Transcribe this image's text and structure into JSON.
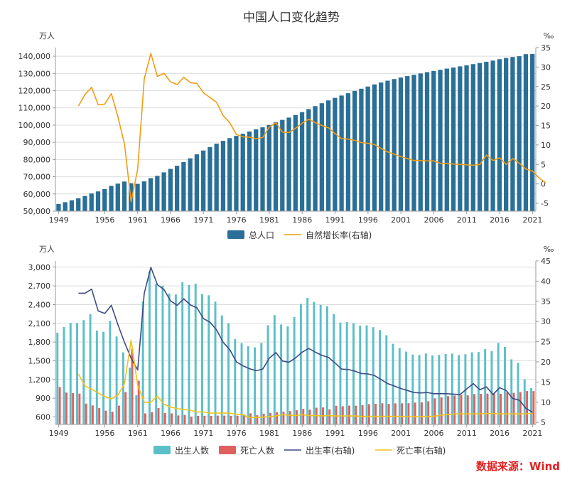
{
  "title": "中国人口变化趋势",
  "source": "数据来源：Wind",
  "colors": {
    "population_bar": "#2a6f97",
    "growth_line": "#f39c12",
    "birth_bar": "#5bbfc8",
    "death_bar": "#e06060",
    "birth_rate_line": "#3d4a85",
    "death_rate_line": "#f0c419",
    "grid": "#dddddd",
    "axis": "#999999"
  },
  "chart_data": [
    {
      "type": "bar",
      "name": "top-chart",
      "left_unit": "万人",
      "right_unit": "‰",
      "x_ticks": [
        "1949",
        "1956",
        "1961",
        "1966",
        "1971",
        "1976",
        "1981",
        "1986",
        "1991",
        "1996",
        "2001",
        "2006",
        "2011",
        "2016",
        "2021"
      ],
      "y_left_ticks": [
        "50,000",
        "60,000",
        "70,000",
        "80,000",
        "90,000",
        "100,000",
        "110,000",
        "120,000",
        "130,000",
        "140,000"
      ],
      "y_right_ticks": [
        "-5",
        "0",
        "5",
        "10",
        "15",
        "20",
        "25",
        "30",
        "35"
      ],
      "ylim_left": [
        50000,
        145000
      ],
      "ylim_right": [
        -7,
        35
      ],
      "x_start": 1949,
      "x_end": 2021,
      "series": [
        {
          "name": "总人口",
          "kind": "bar",
          "axis": "left",
          "start_year": 1949,
          "values": [
            54167,
            55196,
            56300,
            57482,
            58796,
            60266,
            61465,
            62828,
            64653,
            65994,
            67207,
            66207,
            65859,
            67296,
            69172,
            70499,
            72538,
            74542,
            76368,
            78534,
            80671,
            82992,
            85229,
            87177,
            89211,
            90859,
            92420,
            93717,
            94974,
            96259,
            97542,
            98705,
            100072,
            101654,
            103008,
            104357,
            105851,
            107507,
            109300,
            111026,
            112704,
            114333,
            115823,
            117171,
            118517,
            119850,
            121121,
            122389,
            123626,
            124761,
            125786,
            126743,
            127627,
            128453,
            129227,
            129988,
            130756,
            131448,
            132129,
            132802,
            133450,
            134091,
            134735,
            135404,
            136072,
            136782,
            137462,
            138271,
            139008,
            139538,
            140005,
            141212,
            141260
          ]
        },
        {
          "name": "自然增长率(右轴)",
          "kind": "line",
          "axis": "right",
          "start_year": 1952,
          "values": [
            20.0,
            23.0,
            24.8,
            20.3,
            20.5,
            23.2,
            17.2,
            10.2,
            -4.6,
            3.8,
            27.0,
            33.5,
            27.6,
            28.4,
            26.2,
            25.5,
            27.4,
            26.0,
            25.8,
            23.4,
            22.2,
            20.9,
            17.5,
            15.7,
            12.7,
            12.1,
            12.0,
            11.6,
            11.9,
            14.6,
            15.7,
            13.3,
            13.2,
            14.3,
            15.6,
            16.6,
            15.7,
            15.0,
            14.4,
            12.9,
            11.6,
            11.5,
            11.2,
            10.6,
            10.4,
            10.1,
            9.1,
            8.2,
            7.6,
            7.0,
            6.5,
            6.0,
            6.0,
            5.9,
            5.9,
            5.3,
            5.2,
            5.1,
            5.0,
            4.9,
            4.8,
            5.0,
            7.4,
            6.0,
            6.7,
            5.0,
            6.5,
            5.3,
            3.8,
            3.3,
            1.5,
            0.3
          ]
        }
      ]
    },
    {
      "type": "bar",
      "name": "bottom-chart",
      "left_unit": "万人",
      "right_unit": "‰",
      "x_ticks": [
        "1949",
        "1956",
        "1961",
        "1966",
        "1971",
        "1976",
        "1981",
        "1986",
        "1991",
        "1996",
        "2001",
        "2006",
        "2011",
        "2016",
        "2021"
      ],
      "y_left_ticks": [
        "600",
        "900",
        "1,200",
        "1,500",
        "1,800",
        "2,100",
        "2,400",
        "2,700",
        "3,000"
      ],
      "y_right_ticks": [
        "5",
        "10",
        "15",
        "20",
        "25",
        "30",
        "35",
        "40",
        "45"
      ],
      "ylim_left": [
        480,
        3100
      ],
      "ylim_right": [
        4.5,
        45
      ],
      "x_start": 1949,
      "x_end": 2021,
      "series": [
        {
          "name": "出生人数",
          "kind": "bar",
          "axis": "left",
          "start_year": 1949,
          "values": [
            1950,
            2042,
            2107,
            2105,
            2151,
            2245,
            1984,
            1965,
            2138,
            1889,
            1635,
            1389,
            949,
            2451,
            2934,
            2729,
            2704,
            2577,
            2563,
            2757,
            2715,
            2736,
            2569,
            2550,
            2447,
            2226,
            2102,
            1849,
            1783,
            1733,
            1715,
            1786,
            2069,
            2232,
            2081,
            2050,
            2202,
            2411,
            2508,
            2445,
            2396,
            2374,
            2250,
            2113,
            2120,
            2104,
            2063,
            2067,
            2038,
            1991,
            1909,
            1771,
            1702,
            1647,
            1599,
            1593,
            1617,
            1585,
            1595,
            1608,
            1615,
            1592,
            1604,
            1635,
            1640,
            1687,
            1655,
            1786,
            1723,
            1523,
            1465,
            1202,
            1062
          ]
        },
        {
          "name": "死亡人数",
          "kind": "bar",
          "axis": "left",
          "start_year": 1949,
          "values": [
            1080,
            991,
            983,
            973,
            814,
            784,
            744,
            700,
            684,
            781,
            999,
            1693,
            1180,
            657,
            676,
            741,
            664,
            657,
            624,
            632,
            606,
            617,
            618,
            617,
            621,
            621,
            617,
            620,
            640,
            657,
            628,
            652,
            665,
            677,
            684,
            693,
            706,
            728,
            717,
            748,
            752,
            722,
            779,
            771,
            780,
            780,
            789,
            803,
            810,
            819,
            808,
            818,
            818,
            820,
            829,
            834,
            851,
            896,
            913,
            932,
            943,
            951,
            946,
            966,
            970,
            974,
            977,
            971,
            992,
            986,
            998,
            1014,
            1014
          ]
        },
        {
          "name": "出生率(右轴)",
          "kind": "line",
          "axis": "right",
          "start_year": 1952,
          "values": [
            37.0,
            37.0,
            38.0,
            32.6,
            32.0,
            34.0,
            29.2,
            24.8,
            20.9,
            18.0,
            37.0,
            43.4,
            39.1,
            37.9,
            35.1,
            34.0,
            35.6,
            34.1,
            33.4,
            30.7,
            29.8,
            27.9,
            24.8,
            23.0,
            20.0,
            19.0,
            18.3,
            17.8,
            18.2,
            20.9,
            22.3,
            20.2,
            19.9,
            21.0,
            22.4,
            23.3,
            22.4,
            21.6,
            21.1,
            19.7,
            18.2,
            18.1,
            17.7,
            17.1,
            17.0,
            16.6,
            15.6,
            14.6,
            14.0,
            13.4,
            12.9,
            12.4,
            12.3,
            12.4,
            12.1,
            12.1,
            12.1,
            12.0,
            11.9,
            13.3,
            14.6,
            13.1,
            13.8,
            11.9,
            13.6,
            12.9,
            10.9,
            10.5,
            8.5,
            7.5
          ]
        },
        {
          "name": "死亡率(右轴)",
          "kind": "line",
          "axis": "right",
          "start_year": 1952,
          "values": [
            17.0,
            14.0,
            13.2,
            12.3,
            11.4,
            10.8,
            11.8,
            14.6,
            25.4,
            14.2,
            10.0,
            10.0,
            11.5,
            9.5,
            8.8,
            8.4,
            8.2,
            8.0,
            7.6,
            7.6,
            7.3,
            7.3,
            7.3,
            7.3,
            7.0,
            6.9,
            6.2,
            6.2,
            6.3,
            6.4,
            6.6,
            6.9,
            6.8,
            6.7,
            6.9,
            6.7,
            6.7,
            6.6,
            6.7,
            6.6,
            6.6,
            6.6,
            6.6,
            6.5,
            6.5,
            6.5,
            6.5,
            6.5,
            6.5,
            6.5,
            6.4,
            6.4,
            6.4,
            6.5,
            6.5,
            6.8,
            6.9,
            7.1,
            7.1,
            7.1,
            7.1,
            7.1,
            7.2,
            7.2,
            7.1,
            7.1,
            7.1,
            7.1,
            7.1,
            7.2
          ]
        }
      ]
    }
  ]
}
